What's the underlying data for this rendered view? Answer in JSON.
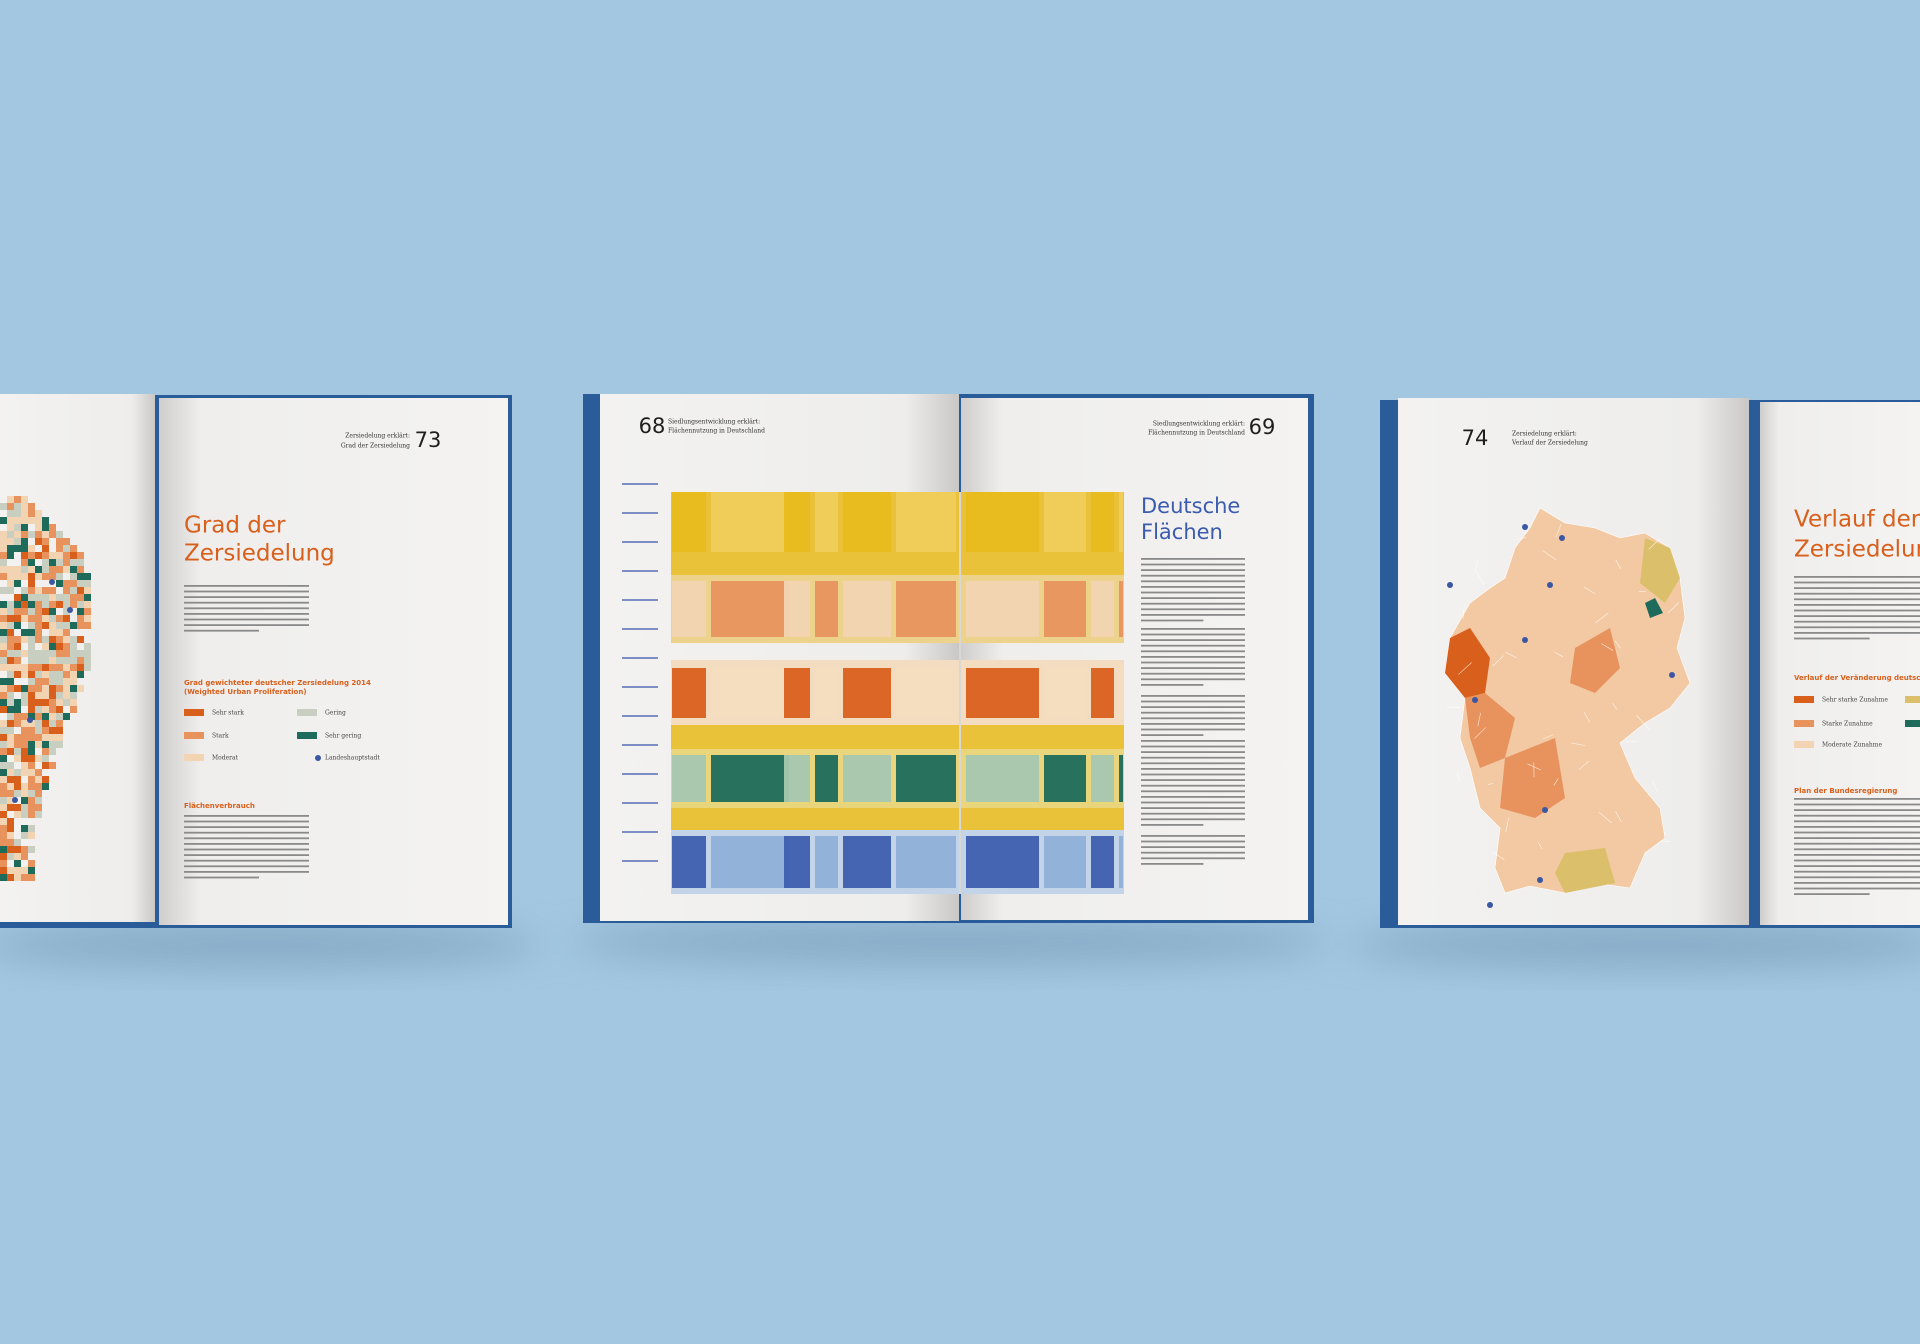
{
  "left_book": {
    "page_number": "73",
    "running_head": [
      "Zersiedelung erklärt:",
      "Grad der Zersiedelung"
    ],
    "title": [
      "Grad der",
      "Zersiedelung"
    ],
    "legend_title": [
      "Grad gewichteter deutscher Zersiedelung 2014",
      "(Weighted Urban Proliferation)"
    ],
    "legend": [
      "Sehr stark",
      "Stark",
      "Moderat",
      "Gering",
      "Sehr gering",
      "Landeshauptstadt"
    ],
    "section_heading": "Flächenverbrauch"
  },
  "middle_book": {
    "left_page_number": "68",
    "left_running_head": [
      "Siedlungsentwicklung erklärt:",
      "Flächennutzung in Deutschland"
    ],
    "right_page_number": "69",
    "right_running_head": [
      "Siedlungsentwicklung erklärt:",
      "Flächennutzung in Deutschland"
    ],
    "title": [
      "Deutsche",
      "Flächen"
    ]
  },
  "right_book": {
    "page_number": "74",
    "running_head": [
      "Zersiedelung erklärt:",
      "Verlauf der Zersiedelung"
    ],
    "title": [
      "Verlauf der",
      "Zersiedelung"
    ],
    "legend_title": "Verlauf der Veränderung deutscher Zersi",
    "legend": [
      "Sehr starke Zunahme",
      "Starke Zunahme",
      "Moderate Zunahme"
    ],
    "section_heading": "Plan der Bundesregierung"
  }
}
